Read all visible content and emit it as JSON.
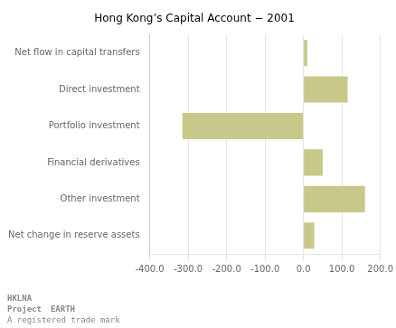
{
  "chart_data": {
    "type": "bar",
    "orientation": "horizontal",
    "title": "Hong Kong’s Capital Account − 2001",
    "categories": [
      "Net flow in capital transfers",
      "Direct investment",
      "Portfolio investment",
      "Financial derivatives",
      "Other investment",
      "Net change in reserve assets"
    ],
    "values": [
      10,
      115,
      -315,
      50,
      160,
      28
    ],
    "color": "#c8c88a",
    "xlim": [
      -400,
      200
    ],
    "xticks": [
      {
        "value": -400,
        "label": "-400.0"
      },
      {
        "value": -300,
        "label": "-300.0"
      },
      {
        "value": -200,
        "label": "-200.0"
      },
      {
        "value": -100,
        "label": "-100.0"
      },
      {
        "value": 0,
        "label": "0.0"
      },
      {
        "value": 100,
        "label": "100.0"
      },
      {
        "value": 200,
        "label": "200.0"
      }
    ],
    "grid": true,
    "annotations": [
      "HKLNA",
      "Project",
      "EARTH",
      "A registered trade mark"
    ]
  }
}
